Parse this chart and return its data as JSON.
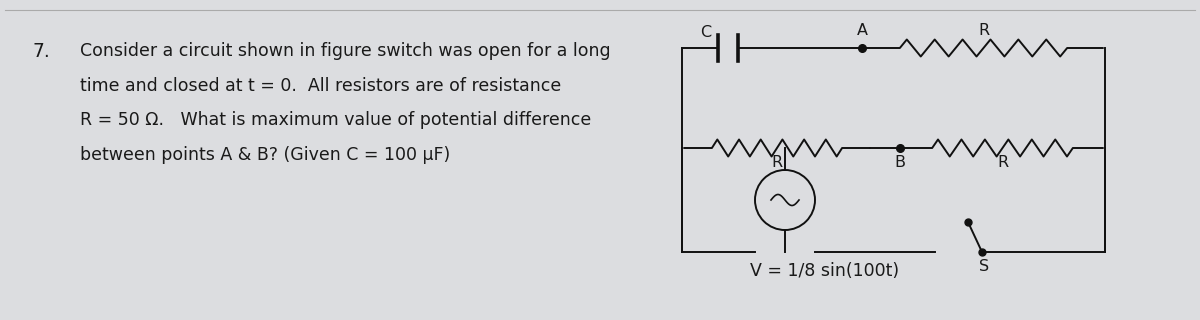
{
  "bg_color": "#dcdde0",
  "text_color": "#1a1a1a",
  "question_number": "7.",
  "question_text_lines": [
    "Consider a circuit shown in figure switch was open for a long",
    "time and closed at t = 0.  All resistors are of resistance",
    "R = 50 Ω.   What is maximum value of potential difference",
    "between points A & B? (Given C = 100 μF)"
  ],
  "circuit_label_C": "C",
  "circuit_label_A": "A",
  "circuit_label_R_top": "R",
  "circuit_label_R_bottom_left": "R",
  "circuit_label_B": "B",
  "circuit_label_R_bottom_right": "R",
  "circuit_label_S": "S",
  "voltage_label": "V = 1/8 sin(100t)",
  "font_size_question": 12.5,
  "font_size_labels": 11.5,
  "font_size_number": 13.5,
  "separator_color": "#aaaaaa",
  "wire_color": "#111111"
}
